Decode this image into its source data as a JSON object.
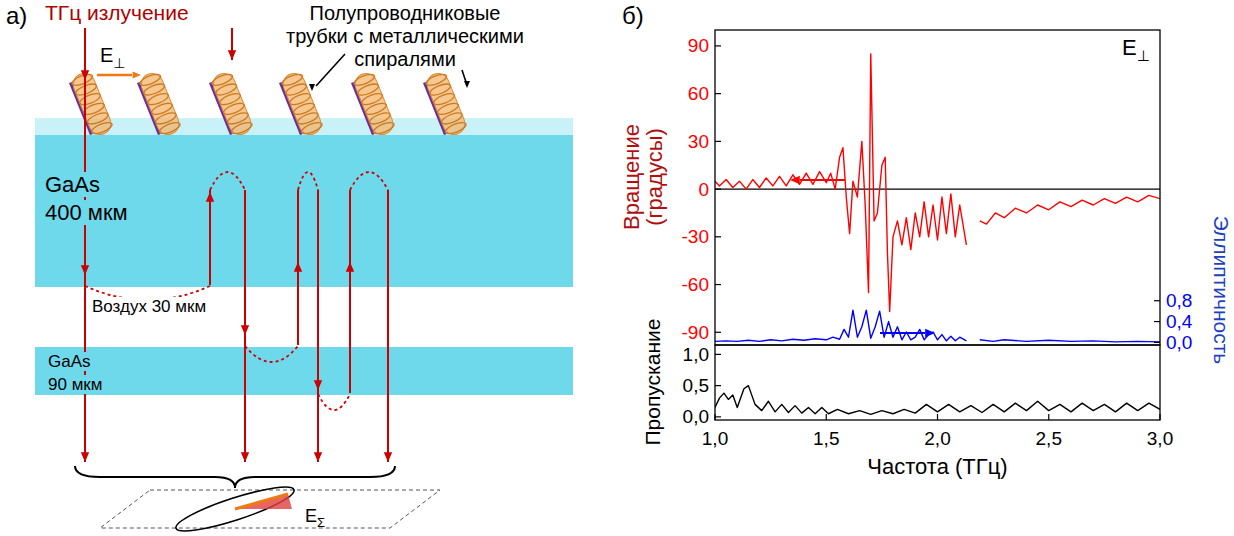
{
  "diagram": {
    "panel_label": "а)",
    "source_label": "ТГц излучение",
    "polarization": {
      "text": "E",
      "sub": "⊥"
    },
    "tubes_label": [
      "Полупроводниковые",
      "трубки с металлическими",
      "спиралями"
    ],
    "layers": [
      {
        "label": [
          "GaAs",
          "400 мкм"
        ]
      },
      {
        "label": [
          "Воздух 30 мкм"
        ]
      },
      {
        "label": [
          "GaAs",
          "90 мкм"
        ]
      }
    ],
    "result": {
      "text": "E",
      "sub": "Σ"
    }
  },
  "chart_data": [
    {
      "type": "line",
      "panel_label": "б)",
      "annotation": {
        "text": "E",
        "sub": "⊥"
      },
      "ylabel": "Вращение (градусы)",
      "y2label": "Эллиптичность",
      "xlim": [
        1,
        3
      ],
      "ylim": [
        -98,
        100
      ],
      "yticks": [
        -90,
        -60,
        -30,
        0,
        30,
        60,
        90
      ],
      "y2lim": [
        -0.05,
        6
      ],
      "y2ticks": [
        {
          "value": 0,
          "label": "0,0"
        },
        {
          "value": 0.4,
          "label": "0,4"
        },
        {
          "value": 0.8,
          "label": "0,8"
        }
      ],
      "hline": 0,
      "tick_labels": "y",
      "series": [
        {
          "color": "#ff0000",
          "x": [
            1.0,
            1.02,
            1.05,
            1.08,
            1.11,
            1.14,
            1.17,
            1.2,
            1.23,
            1.26,
            1.29,
            1.32,
            1.35,
            1.38,
            1.41,
            1.44,
            1.47,
            1.5,
            1.52,
            1.54,
            1.56,
            1.575,
            1.59,
            1.605,
            1.62,
            1.64,
            1.66,
            1.675,
            1.69,
            1.7,
            1.715,
            1.73,
            1.75,
            1.765,
            1.775,
            1.785,
            1.8,
            1.82,
            1.84,
            1.86,
            1.88,
            1.9,
            1.92,
            1.94,
            1.96,
            1.98,
            2.0,
            2.02,
            2.04,
            2.06,
            2.08,
            2.1,
            2.13,
            2.16,
            2.19,
            2.22,
            2.26,
            2.3,
            2.35,
            2.4,
            2.45,
            2.5,
            2.55,
            2.6,
            2.65,
            2.7,
            2.75,
            2.8,
            2.85,
            2.9,
            2.95,
            3.0
          ],
          "values": [
            5,
            2,
            6,
            1,
            5,
            0,
            6,
            1,
            7,
            2,
            8,
            2,
            9,
            3,
            10,
            3,
            11,
            4,
            10,
            0,
            20,
            26,
            -5,
            -28,
            5,
            -5,
            30,
            -10,
            -65,
            85,
            -20,
            -15,
            15,
            20,
            -40,
            -77,
            -30,
            -20,
            -35,
            -18,
            -38,
            -15,
            -30,
            -8,
            -30,
            -10,
            -32,
            -5,
            -28,
            -3,
            -30,
            -10,
            -35,
            null,
            -20,
            -22,
            -15,
            -18,
            -12,
            -15,
            -10,
            -13,
            -8,
            -11,
            -7,
            -10,
            -6,
            -9,
            -5,
            -8,
            -4,
            -6
          ]
        },
        {
          "color": "#0000ff",
          "axis": "y2",
          "x": [
            1.0,
            1.05,
            1.1,
            1.15,
            1.2,
            1.25,
            1.3,
            1.35,
            1.4,
            1.45,
            1.5,
            1.53,
            1.56,
            1.58,
            1.6,
            1.62,
            1.64,
            1.66,
            1.68,
            1.7,
            1.72,
            1.74,
            1.76,
            1.78,
            1.8,
            1.82,
            1.84,
            1.86,
            1.88,
            1.9,
            1.92,
            1.94,
            1.96,
            1.98,
            2.0,
            2.02,
            2.04,
            2.06,
            2.08,
            2.1,
            2.13,
            2.16,
            2.19,
            2.25,
            2.3,
            2.4,
            2.5,
            2.6,
            2.7,
            2.8,
            2.9,
            3.0
          ],
          "values": [
            0.02,
            0.03,
            0.02,
            0.04,
            0.02,
            0.05,
            0.03,
            0.06,
            0.04,
            0.07,
            0.05,
            0.1,
            0.06,
            0.25,
            0.1,
            0.62,
            0.1,
            0.3,
            0.62,
            0.08,
            0.3,
            0.6,
            0.1,
            0.4,
            0.1,
            0.3,
            0.05,
            0.2,
            0.05,
            0.1,
            0.25,
            0.05,
            0.15,
            0.2,
            0.05,
            0.15,
            0.03,
            0.12,
            0.03,
            0.1,
            0.03,
            null,
            0.05,
            0.02,
            0.05,
            0.02,
            0.04,
            0.02,
            0.03,
            0.01,
            0.02,
            0.01
          ]
        }
      ]
    },
    {
      "type": "line",
      "ylabel": "Пропускание",
      "xlabel": "Частота (ТГц)",
      "xlim": [
        1,
        3
      ],
      "xticks": [
        {
          "value": 1,
          "label": "1,0"
        },
        {
          "value": 1.5,
          "label": "1,5"
        },
        {
          "value": 2,
          "label": "2,0"
        },
        {
          "value": 2.5,
          "label": "2,5"
        },
        {
          "value": 3,
          "label": "3,0"
        }
      ],
      "ylim": [
        -0.05,
        1.15
      ],
      "yticks": [
        {
          "value": 0,
          "label": "0,0"
        },
        {
          "value": 0.5,
          "label": "0,5"
        },
        {
          "value": 1,
          "label": "1,0"
        }
      ],
      "series": [
        {
          "color": "#000000",
          "x": [
            1.0,
            1.02,
            1.04,
            1.06,
            1.08,
            1.1,
            1.13,
            1.15,
            1.18,
            1.21,
            1.24,
            1.27,
            1.3,
            1.33,
            1.36,
            1.39,
            1.42,
            1.45,
            1.48,
            1.51,
            1.55,
            1.6,
            1.65,
            1.7,
            1.75,
            1.8,
            1.85,
            1.9,
            1.95,
            2.0,
            2.05,
            2.1,
            2.15,
            2.2,
            2.25,
            2.3,
            2.35,
            2.4,
            2.45,
            2.5,
            2.55,
            2.6,
            2.65,
            2.7,
            2.75,
            2.8,
            2.85,
            2.9,
            2.95,
            3.0
          ],
          "values": [
            0.15,
            0.3,
            0.38,
            0.28,
            0.35,
            0.15,
            0.45,
            0.5,
            0.2,
            0.1,
            0.25,
            0.08,
            0.2,
            0.07,
            0.18,
            0.06,
            0.15,
            0.05,
            0.15,
            0.05,
            0.12,
            0.05,
            0.1,
            0.04,
            0.1,
            0.05,
            0.12,
            0.06,
            0.2,
            0.08,
            0.2,
            0.08,
            0.18,
            0.07,
            0.2,
            0.08,
            0.22,
            0.1,
            0.25,
            0.1,
            0.2,
            0.08,
            0.22,
            0.1,
            0.2,
            0.08,
            0.22,
            0.1,
            0.22,
            0.12
          ]
        }
      ]
    }
  ]
}
